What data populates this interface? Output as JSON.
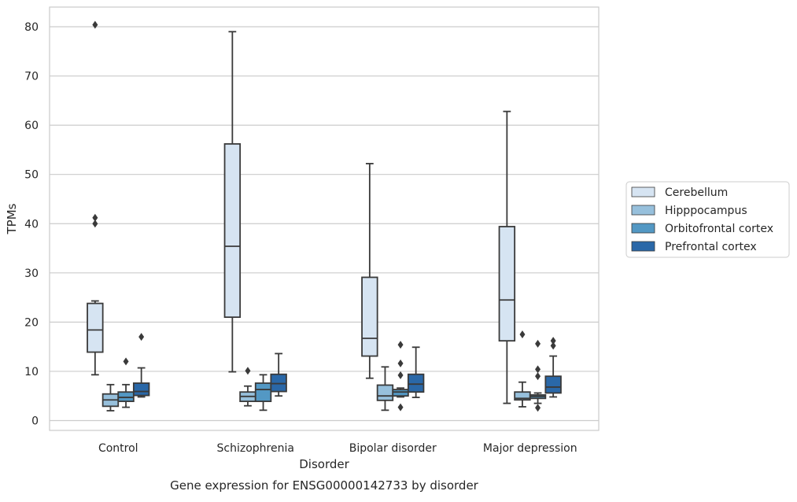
{
  "caption": "Gene expression for ENSG00000142733 by disorder",
  "chart_data": {
    "type": "box",
    "xlabel": "Disorder",
    "ylabel": "TPMs",
    "ylim": [
      -2,
      84
    ],
    "yticks": [
      0,
      10,
      20,
      30,
      40,
      50,
      60,
      70,
      80
    ],
    "categories": [
      "Control",
      "Schizophrenia",
      "Bipolar disorder",
      "Major depression"
    ],
    "grid": "horizontal",
    "legend_position": "right",
    "series": [
      {
        "name": "Cerebellum",
        "color": "#d6e4f2",
        "boxes": [
          {
            "whislo": 9.3,
            "q1": 13.9,
            "med": 18.4,
            "q3": 23.8,
            "whishi": 24.3,
            "fliers": [
              40,
              41.2,
              80.4
            ]
          },
          {
            "whislo": 9.9,
            "q1": 21.0,
            "med": 35.4,
            "q3": 56.2,
            "whishi": 79.0,
            "fliers": []
          },
          {
            "whislo": 8.6,
            "q1": 13.1,
            "med": 16.7,
            "q3": 29.1,
            "whishi": 52.2,
            "fliers": []
          },
          {
            "whislo": 3.5,
            "q1": 16.2,
            "med": 24.5,
            "q3": 39.4,
            "whishi": 62.8,
            "fliers": []
          }
        ]
      },
      {
        "name": "Hipppocampus",
        "color": "#97c0dc",
        "boxes": [
          {
            "whislo": 2.0,
            "q1": 2.9,
            "med": 4.2,
            "q3": 5.4,
            "whishi": 7.3,
            "fliers": []
          },
          {
            "whislo": 3.0,
            "q1": 3.9,
            "med": 4.9,
            "q3": 5.8,
            "whishi": 7.0,
            "fliers": [
              10.1
            ]
          },
          {
            "whislo": 2.1,
            "q1": 4.1,
            "med": 5.0,
            "q3": 7.2,
            "whishi": 10.9,
            "fliers": []
          },
          {
            "whislo": 2.8,
            "q1": 4.2,
            "med": 4.5,
            "q3": 5.8,
            "whishi": 7.8,
            "fliers": [
              17.5
            ]
          }
        ]
      },
      {
        "name": "Orbitofrontal cortex",
        "color": "#5398c4",
        "boxes": [
          {
            "whislo": 2.7,
            "q1": 3.9,
            "med": 4.7,
            "q3": 5.8,
            "whishi": 7.3,
            "fliers": [
              12.0
            ]
          },
          {
            "whislo": 2.1,
            "q1": 3.9,
            "med": 6.3,
            "q3": 7.6,
            "whishi": 9.3,
            "fliers": []
          },
          {
            "whislo": 4.8,
            "q1": 5.0,
            "med": 5.8,
            "q3": 6.3,
            "whishi": 6.6,
            "fliers": [
              2.7,
              9.2,
              11.6,
              15.4
            ]
          },
          {
            "whislo": 3.5,
            "q1": 4.5,
            "med": 4.9,
            "q3": 5.2,
            "whishi": 5.6,
            "fliers": [
              2.6,
              9.0,
              10.4,
              15.6
            ]
          }
        ]
      },
      {
        "name": "Prefrontal cortex",
        "color": "#2a68a8",
        "boxes": [
          {
            "whislo": 4.8,
            "q1": 5.1,
            "med": 5.9,
            "q3": 7.6,
            "whishi": 10.7,
            "fliers": [
              17.0
            ]
          },
          {
            "whislo": 5.0,
            "q1": 5.9,
            "med": 7.5,
            "q3": 9.4,
            "whishi": 13.6,
            "fliers": []
          },
          {
            "whislo": 4.7,
            "q1": 5.8,
            "med": 7.4,
            "q3": 9.4,
            "whishi": 14.9,
            "fliers": []
          },
          {
            "whislo": 4.8,
            "q1": 5.6,
            "med": 6.8,
            "q3": 9.0,
            "whishi": 13.1,
            "fliers": [
              15.2,
              16.2
            ]
          }
        ]
      }
    ]
  },
  "colors": {
    "box_edge": "#3a3a3a",
    "grid": "#cccccc",
    "frame": "#cccccc"
  }
}
